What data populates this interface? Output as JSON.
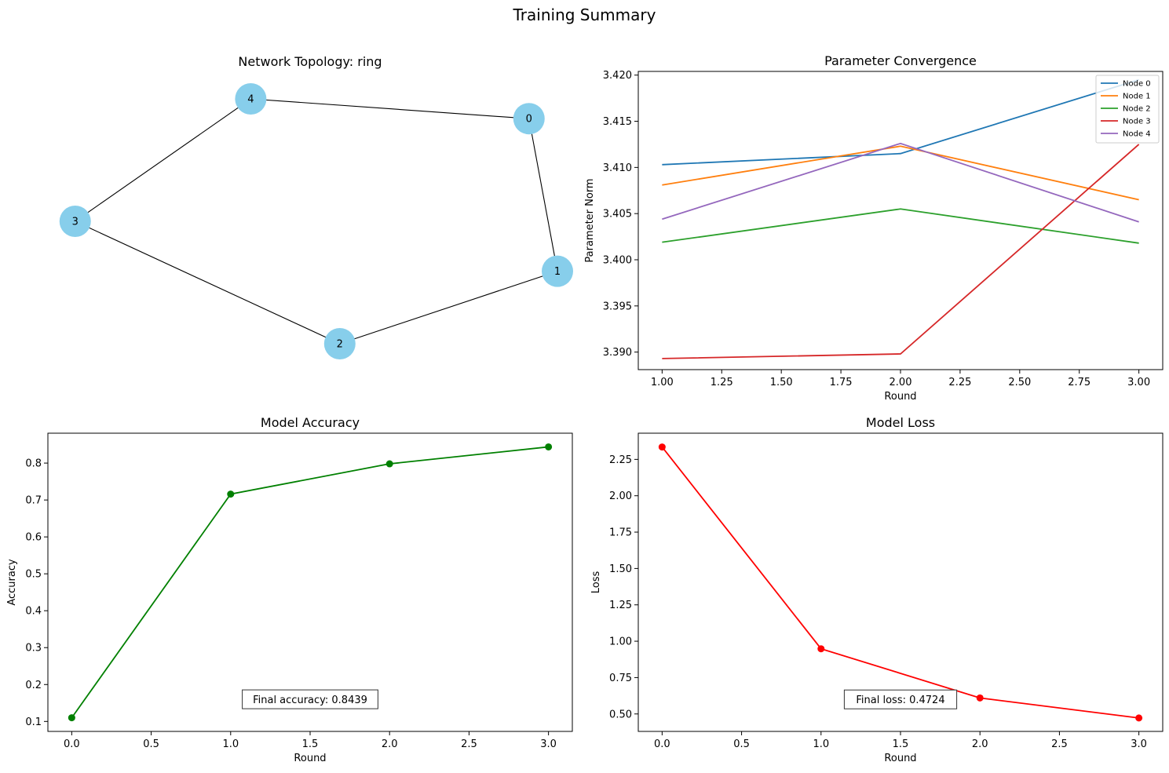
{
  "figure": {
    "title": "Training Summary"
  },
  "colors": {
    "node_fill": "#87ceeb",
    "edge": "#000000",
    "accuracy": "#008000",
    "loss": "#ff0000",
    "series": [
      "#1f77b4",
      "#ff7f0e",
      "#2ca02c",
      "#d62728",
      "#9467bd"
    ]
  },
  "chart_data": [
    {
      "type": "network",
      "title": "Network Topology: ring",
      "nodes": [
        {
          "id": "0",
          "label": "0",
          "x": 0.885,
          "y": 0.545
        },
        {
          "id": "1",
          "label": "1",
          "x": 1.0,
          "y": -0.265
        },
        {
          "id": "2",
          "label": "2",
          "x": 0.12,
          "y": -0.65
        },
        {
          "id": "3",
          "label": "3",
          "x": -0.95,
          "y": 0.0
        },
        {
          "id": "4",
          "label": "4",
          "x": -0.24,
          "y": 0.65
        }
      ],
      "edges": [
        [
          "0",
          "1"
        ],
        [
          "1",
          "2"
        ],
        [
          "2",
          "3"
        ],
        [
          "3",
          "4"
        ],
        [
          "4",
          "0"
        ]
      ]
    },
    {
      "type": "line",
      "title": "Parameter Convergence",
      "xlabel": "Round",
      "ylabel": "Parameter Norm",
      "xlim": [
        0.9,
        3.1
      ],
      "ylim": [
        3.3881,
        3.4204
      ],
      "xticks": [
        1.0,
        1.25,
        1.5,
        1.75,
        2.0,
        2.25,
        2.5,
        2.75,
        3.0
      ],
      "xtick_labels": [
        "1.00",
        "1.25",
        "1.50",
        "1.75",
        "2.00",
        "2.25",
        "2.50",
        "2.75",
        "3.00"
      ],
      "yticks": [
        3.39,
        3.395,
        3.4,
        3.405,
        3.41,
        3.415,
        3.42
      ],
      "ytick_labels": [
        "3.390",
        "3.395",
        "3.400",
        "3.405",
        "3.410",
        "3.415",
        "3.420"
      ],
      "legend_position": "top-right",
      "x": [
        1,
        2,
        3
      ],
      "series": [
        {
          "name": "Node 0",
          "values": [
            3.4103,
            3.4115,
            3.4195
          ]
        },
        {
          "name": "Node 1",
          "values": [
            3.4081,
            3.4123,
            3.4065
          ]
        },
        {
          "name": "Node 2",
          "values": [
            3.4019,
            3.4055,
            3.4018
          ]
        },
        {
          "name": "Node 3",
          "values": [
            3.3893,
            3.3898,
            3.4125
          ]
        },
        {
          "name": "Node 4",
          "values": [
            3.4044,
            3.4126,
            3.4041
          ]
        }
      ]
    },
    {
      "type": "line",
      "title": "Model Accuracy",
      "xlabel": "Round",
      "ylabel": "Accuracy",
      "xlim": [
        -0.15,
        3.15
      ],
      "ylim": [
        0.073,
        0.881
      ],
      "xticks": [
        0,
        0.5,
        1,
        1.5,
        2,
        2.5,
        3
      ],
      "xtick_labels": [
        "0.0",
        "0.5",
        "1.0",
        "1.5",
        "2.0",
        "2.5",
        "3.0"
      ],
      "yticks": [
        0.1,
        0.2,
        0.3,
        0.4,
        0.5,
        0.6,
        0.7,
        0.8
      ],
      "ytick_labels": [
        "0.1",
        "0.2",
        "0.3",
        "0.4",
        "0.5",
        "0.6",
        "0.7",
        "0.8"
      ],
      "x": [
        0,
        1,
        2,
        3
      ],
      "values": [
        0.11,
        0.716,
        0.798,
        0.8439
      ],
      "annotation": {
        "text": "Final accuracy: 0.8439",
        "x": 1.5,
        "y": 0.16
      }
    },
    {
      "type": "line",
      "title": "Model Loss",
      "xlabel": "Round",
      "ylabel": "Loss",
      "xlim": [
        -0.15,
        3.15
      ],
      "ylim": [
        0.38,
        2.43
      ],
      "xticks": [
        0,
        0.5,
        1,
        1.5,
        2,
        2.5,
        3
      ],
      "xtick_labels": [
        "0.0",
        "0.5",
        "1.0",
        "1.5",
        "2.0",
        "2.5",
        "3.0"
      ],
      "yticks": [
        0.5,
        0.75,
        1.0,
        1.25,
        1.5,
        1.75,
        2.0,
        2.25
      ],
      "ytick_labels": [
        "0.50",
        "0.75",
        "1.00",
        "1.25",
        "1.50",
        "1.75",
        "2.00",
        "2.25"
      ],
      "x": [
        0,
        1,
        2,
        3
      ],
      "values": [
        2.335,
        0.948,
        0.61,
        0.4724
      ],
      "annotation": {
        "text": "Final loss: 0.4724",
        "x": 1.5,
        "y": 0.6
      }
    }
  ]
}
